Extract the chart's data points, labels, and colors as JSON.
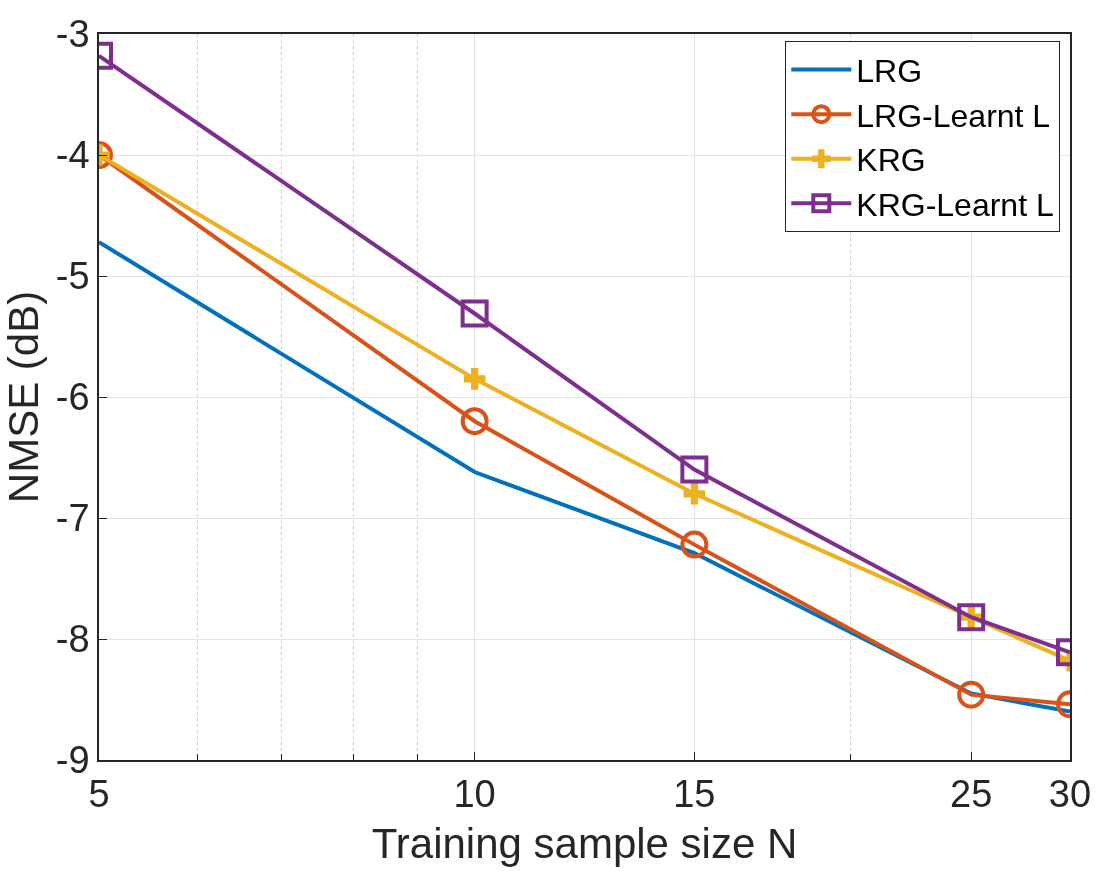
{
  "chart_data": {
    "type": "line",
    "xlabel": "Training sample size N",
    "ylabel": "NMSE (dB)",
    "log": "x",
    "x": [
      5,
      10,
      15,
      25,
      30
    ],
    "xlim": [
      5,
      30
    ],
    "xticks": [
      5,
      {
        "value": 6,
        "label": null
      },
      {
        "value": 7,
        "label": null
      },
      {
        "value": 8,
        "label": null
      },
      {
        "value": 9,
        "label": null
      },
      10,
      15,
      {
        "value": 20,
        "label": null
      },
      25,
      30
    ],
    "ylim": [
      -9,
      -3
    ],
    "yticks": [
      -9,
      -8,
      -7,
      -6,
      -5,
      -4,
      -3
    ],
    "grid": true,
    "legend": "top right",
    "line_style": "solid",
    "series": [
      {
        "name": "LRG",
        "color": "#0072bd",
        "marker": "none",
        "values": [
          -4.72,
          -6.62,
          -7.29,
          -8.45,
          -8.6
        ]
      },
      {
        "name": "LRG-Learnt L",
        "color": "#d95319",
        "marker": "circle",
        "values": [
          -4.0,
          -6.2,
          -7.22,
          -8.46,
          -8.54
        ]
      },
      {
        "name": "KRG",
        "color": "#edb120",
        "marker": "cross",
        "values": [
          -4.0,
          -5.85,
          -6.8,
          -7.82,
          -8.18
        ]
      },
      {
        "name": "KRG-Learnt L",
        "color": "#7e2f8e",
        "marker": "square",
        "values": [
          -3.18,
          -5.31,
          -6.6,
          -7.82,
          -8.11
        ]
      }
    ]
  }
}
